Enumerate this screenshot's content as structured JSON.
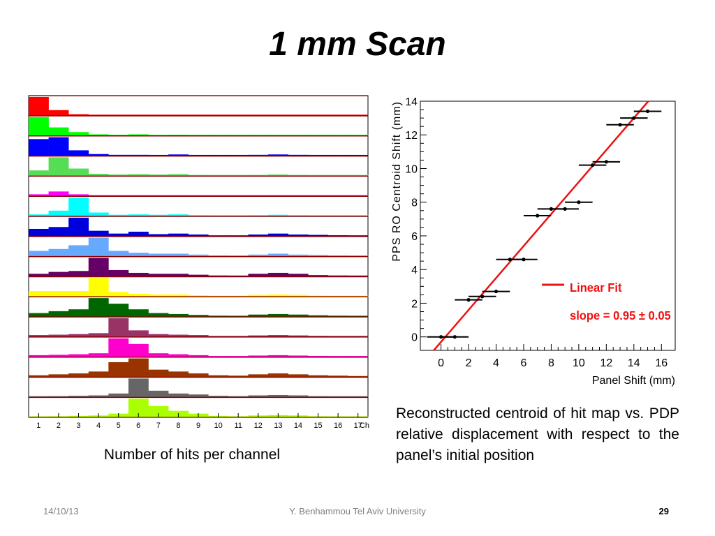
{
  "slide": {
    "title": "1 mm Scan",
    "left_caption": "Number of hits per channel",
    "right_caption": "Reconstructed centroid of hit map vs. PDP relative displacement with respect to the panel’s initial position",
    "footer_date": "14/10/13",
    "footer_center": "Y. Benhammou Tel Aviv University",
    "page_number": "29"
  },
  "chart_data": [
    {
      "type": "bar",
      "title": "",
      "xlabel": "Ch",
      "ylabel": "",
      "categories": [
        "1",
        "2",
        "3",
        "4",
        "5",
        "6",
        "7",
        "8",
        "9",
        "10",
        "11",
        "12",
        "13",
        "14",
        "15",
        "16",
        "17"
      ],
      "note": "Stacked panels of hit histograms, one per panel position, values are relative heights (0-1)",
      "series": [
        {
          "color": "#ff0000",
          "values": [
            1.0,
            0.3,
            0.08,
            0.04,
            0.03,
            0.03,
            0.03,
            0.03,
            0.03,
            0.02,
            0.02,
            0.03,
            0.03,
            0.03,
            0.02,
            0.02,
            0.02
          ]
        },
        {
          "color": "#00ff00",
          "values": [
            1.0,
            0.45,
            0.2,
            0.08,
            0.06,
            0.08,
            0.05,
            0.06,
            0.05,
            0.03,
            0.03,
            0.04,
            0.05,
            0.04,
            0.03,
            0.03,
            0.02
          ]
        },
        {
          "color": "#0000ff",
          "values": [
            0.9,
            1.0,
            0.3,
            0.1,
            0.06,
            0.06,
            0.05,
            0.08,
            0.05,
            0.03,
            0.03,
            0.06,
            0.08,
            0.06,
            0.04,
            0.04,
            0.03
          ]
        },
        {
          "color": "#55dd55",
          "values": [
            0.3,
            1.0,
            0.4,
            0.12,
            0.08,
            0.1,
            0.08,
            0.1,
            0.06,
            0.04,
            0.03,
            0.06,
            0.08,
            0.06,
            0.05,
            0.04,
            0.03
          ]
        },
        {
          "color": "#ff00ff",
          "values": [
            0.1,
            0.25,
            0.1,
            0.05,
            0.03,
            0.03,
            0.03,
            0.03,
            0.02,
            0.02,
            0.02,
            0.03,
            0.03,
            0.02,
            0.02,
            0.02,
            0.02
          ]
        },
        {
          "color": "#00ffff",
          "values": [
            0.1,
            0.3,
            1.0,
            0.2,
            0.08,
            0.1,
            0.08,
            0.1,
            0.06,
            0.04,
            0.03,
            0.06,
            0.08,
            0.06,
            0.05,
            0.04,
            0.03
          ]
        },
        {
          "color": "#0000dd",
          "values": [
            0.4,
            0.5,
            1.0,
            0.3,
            0.15,
            0.25,
            0.12,
            0.15,
            0.1,
            0.05,
            0.05,
            0.1,
            0.15,
            0.1,
            0.08,
            0.06,
            0.05
          ]
        },
        {
          "color": "#66aaff",
          "values": [
            0.3,
            0.4,
            0.6,
            1.0,
            0.3,
            0.2,
            0.15,
            0.15,
            0.1,
            0.06,
            0.05,
            0.1,
            0.15,
            0.1,
            0.08,
            0.06,
            0.05
          ]
        },
        {
          "color": "#660066",
          "values": [
            0.15,
            0.25,
            0.3,
            1.0,
            0.35,
            0.2,
            0.15,
            0.15,
            0.1,
            0.06,
            0.05,
            0.15,
            0.2,
            0.15,
            0.08,
            0.06,
            0.05
          ]
        },
        {
          "color": "#ffff00",
          "values": [
            0.3,
            0.3,
            0.3,
            1.0,
            0.25,
            0.15,
            0.12,
            0.12,
            0.08,
            0.05,
            0.05,
            0.1,
            0.12,
            0.1,
            0.06,
            0.05,
            0.04
          ]
        },
        {
          "color": "#006600",
          "values": [
            0.2,
            0.3,
            0.4,
            1.0,
            0.7,
            0.4,
            0.2,
            0.15,
            0.1,
            0.06,
            0.05,
            0.12,
            0.15,
            0.12,
            0.08,
            0.06,
            0.05
          ]
        },
        {
          "color": "#993366",
          "values": [
            0.1,
            0.12,
            0.15,
            0.2,
            1.0,
            0.35,
            0.15,
            0.12,
            0.1,
            0.05,
            0.05,
            0.08,
            0.1,
            0.08,
            0.06,
            0.05,
            0.04
          ]
        },
        {
          "color": "#ff00cc",
          "values": [
            0.1,
            0.12,
            0.15,
            0.2,
            1.0,
            0.7,
            0.2,
            0.15,
            0.1,
            0.05,
            0.05,
            0.08,
            0.1,
            0.08,
            0.06,
            0.05,
            0.04
          ]
        },
        {
          "color": "#993300",
          "values": [
            0.1,
            0.15,
            0.2,
            0.3,
            0.8,
            1.0,
            0.4,
            0.3,
            0.2,
            0.1,
            0.08,
            0.15,
            0.2,
            0.15,
            0.1,
            0.08,
            0.06
          ]
        },
        {
          "color": "#666666",
          "values": [
            0.05,
            0.06,
            0.08,
            0.1,
            0.2,
            1.0,
            0.35,
            0.2,
            0.15,
            0.08,
            0.06,
            0.1,
            0.12,
            0.1,
            0.06,
            0.05,
            0.04
          ]
        },
        {
          "color": "#aaff00",
          "values": [
            0.05,
            0.06,
            0.08,
            0.1,
            0.2,
            1.0,
            0.6,
            0.35,
            0.2,
            0.08,
            0.06,
            0.1,
            0.12,
            0.1,
            0.06,
            0.05,
            0.04
          ]
        }
      ]
    },
    {
      "type": "scatter",
      "title": "",
      "xlabel": "Panel Shift (mm)",
      "ylabel": "PPS RO Centroid Shift (mm)",
      "xlim": [
        -1.5,
        17
      ],
      "ylim": [
        -0.8,
        14
      ],
      "xticks": [
        0,
        2,
        4,
        6,
        8,
        10,
        12,
        14,
        16
      ],
      "yticks": [
        0,
        2,
        4,
        6,
        8,
        10,
        12,
        14
      ],
      "points": [
        {
          "x": 0,
          "y": 0.0,
          "xerr": 1
        },
        {
          "x": 1,
          "y": 0.0,
          "xerr": 1
        },
        {
          "x": 2,
          "y": 2.2,
          "xerr": 1
        },
        {
          "x": 3,
          "y": 2.4,
          "xerr": 1
        },
        {
          "x": 4,
          "y": 2.7,
          "xerr": 1
        },
        {
          "x": 5,
          "y": 4.6,
          "xerr": 1
        },
        {
          "x": 6,
          "y": 4.6,
          "xerr": 1
        },
        {
          "x": 7,
          "y": 7.2,
          "xerr": 1
        },
        {
          "x": 8,
          "y": 7.6,
          "xerr": 1
        },
        {
          "x": 9,
          "y": 7.6,
          "xerr": 1
        },
        {
          "x": 10,
          "y": 8.0,
          "xerr": 1
        },
        {
          "x": 11,
          "y": 10.2,
          "xerr": 1
        },
        {
          "x": 12,
          "y": 10.4,
          "xerr": 1
        },
        {
          "x": 13,
          "y": 12.6,
          "xerr": 1
        },
        {
          "x": 14,
          "y": 13.0,
          "xerr": 1
        },
        {
          "x": 15,
          "y": 13.4,
          "xerr": 1
        }
      ],
      "fit": {
        "slope": 0.95,
        "intercept": -0.3,
        "color": "#ee1111"
      },
      "legend": {
        "label": "Linear Fit",
        "text": "slope = 0.95 ± 0.05",
        "placement": "bottom-right"
      }
    }
  ]
}
